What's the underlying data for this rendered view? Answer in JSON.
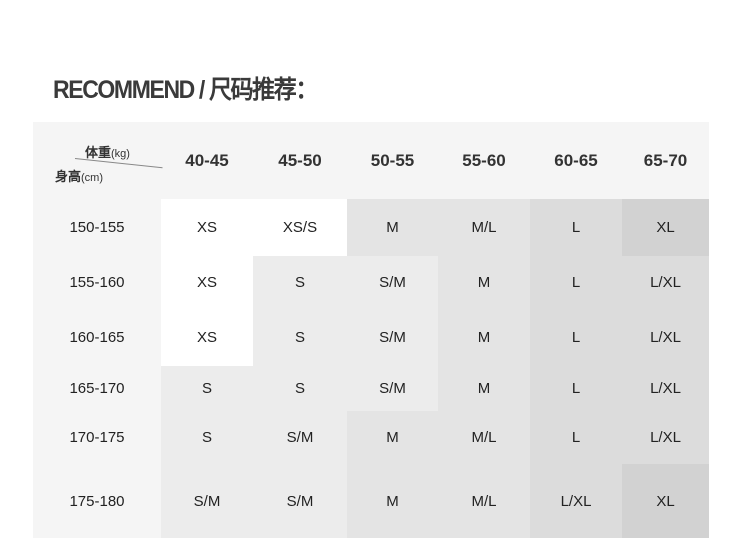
{
  "title": "RECOMMEND / 尺码推荐：",
  "corner": {
    "weight": "体重",
    "weight_unit": "(kg)",
    "height": "身高",
    "height_unit": "(cm)"
  },
  "weights": [
    "40-45",
    "45-50",
    "50-55",
    "55-60",
    "60-65",
    "65-70"
  ],
  "rows": [
    {
      "height": "150-155",
      "sizes": [
        "XS",
        "XS/S",
        "M",
        "M/L",
        "L",
        "XL"
      ],
      "shades": [
        "#ffffff",
        "#ffffff",
        "#e4e4e4",
        "#e4e4e4",
        "#dcdcdc",
        "#d2d2d2"
      ]
    },
    {
      "height": "155-160",
      "sizes": [
        "XS",
        "S",
        "S/M",
        "M",
        "L",
        "L/XL"
      ],
      "shades": [
        "#ffffff",
        "#ececec",
        "#ececec",
        "#e4e4e4",
        "#dcdcdc",
        "#dcdcdc"
      ]
    },
    {
      "height": "160-165",
      "sizes": [
        "XS",
        "S",
        "S/M",
        "M",
        "L",
        "L/XL"
      ],
      "shades": [
        "#ffffff",
        "#ececec",
        "#ececec",
        "#e4e4e4",
        "#dcdcdc",
        "#dcdcdc"
      ]
    },
    {
      "height": "165-170",
      "sizes": [
        "S",
        "S",
        "S/M",
        "M",
        "L",
        "L/XL"
      ],
      "shades": [
        "#ececec",
        "#ececec",
        "#ececec",
        "#e4e4e4",
        "#dcdcdc",
        "#dcdcdc"
      ]
    },
    {
      "height": "170-175",
      "sizes": [
        "S",
        "S/M",
        "M",
        "M/L",
        "L",
        "L/XL"
      ],
      "shades": [
        "#ececec",
        "#ececec",
        "#e4e4e4",
        "#e4e4e4",
        "#dcdcdc",
        "#dcdcdc"
      ]
    },
    {
      "height": "175-180",
      "sizes": [
        "S/M",
        "S/M",
        "M",
        "M/L",
        "L/XL",
        "XL"
      ],
      "shades": [
        "#ececec",
        "#ececec",
        "#e4e4e4",
        "#e4e4e4",
        "#dcdcdc",
        "#d2d2d2"
      ]
    }
  ]
}
